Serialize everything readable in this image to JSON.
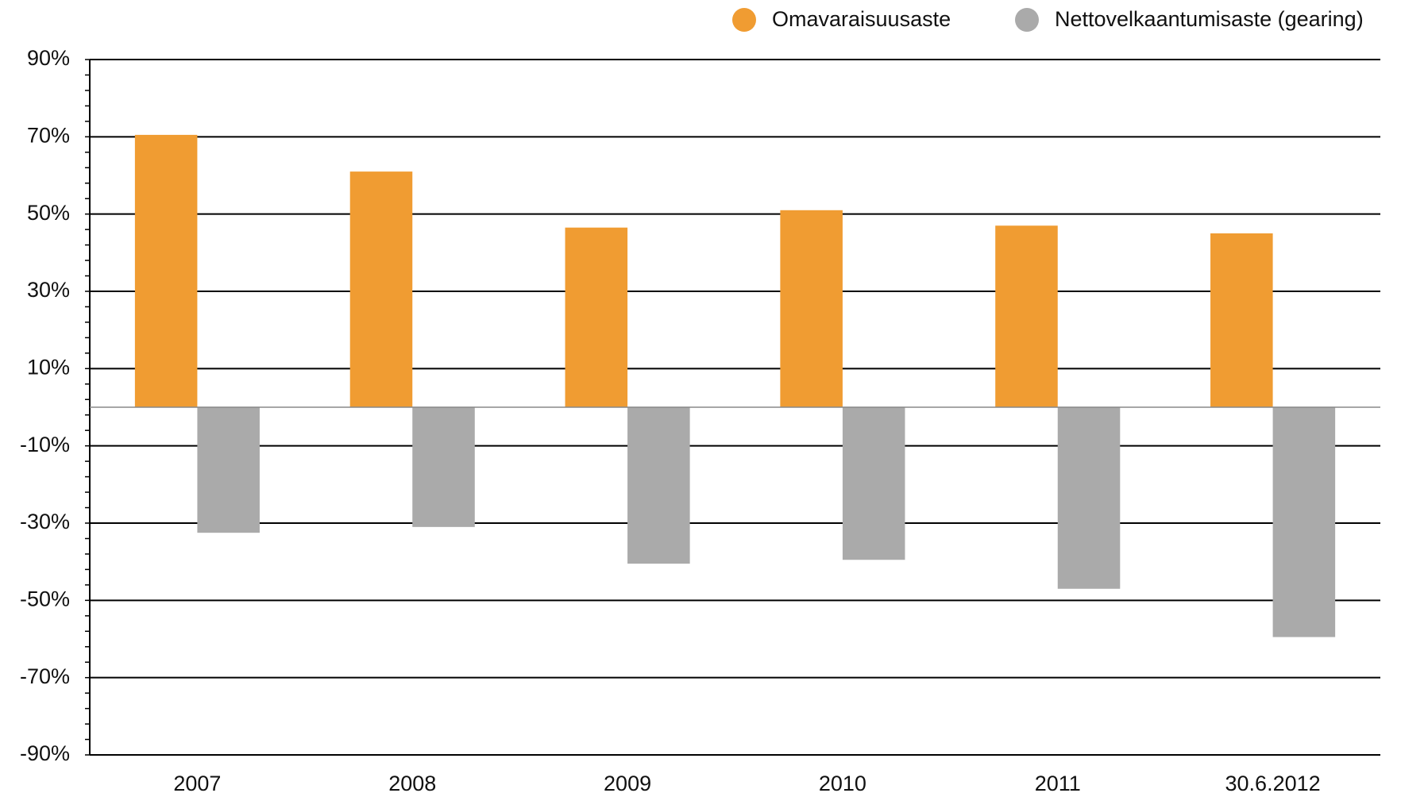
{
  "chart_data": {
    "type": "bar",
    "categories": [
      "2007",
      "2008",
      "2009",
      "2010",
      "2011",
      "30.6.2012"
    ],
    "series": [
      {
        "name": "Omavaraisuusaste",
        "color": "#f09c32",
        "values": [
          70.5,
          61,
          46.5,
          51,
          47,
          45
        ]
      },
      {
        "name": "Nettovelkaantumisaste (gearing)",
        "color": "#aaaaaa",
        "values": [
          -32.5,
          -31,
          -40.5,
          -39.5,
          -47,
          -59.5
        ]
      }
    ],
    "ylim": [
      -90,
      90
    ],
    "yticks": [
      {
        "value": -90,
        "label": "-90%"
      },
      {
        "value": -70,
        "label": "-70%"
      },
      {
        "value": -50,
        "label": "-50%"
      },
      {
        "value": -30,
        "label": "-30%"
      },
      {
        "value": -10,
        "label": "-10%"
      },
      {
        "value": 10,
        "label": "10%"
      },
      {
        "value": 30,
        "label": "30%"
      },
      {
        "value": 50,
        "label": "50%"
      },
      {
        "value": 70,
        "label": "70%"
      },
      {
        "value": 90,
        "label": "90%"
      }
    ],
    "grid": true,
    "legend": "top-right"
  }
}
